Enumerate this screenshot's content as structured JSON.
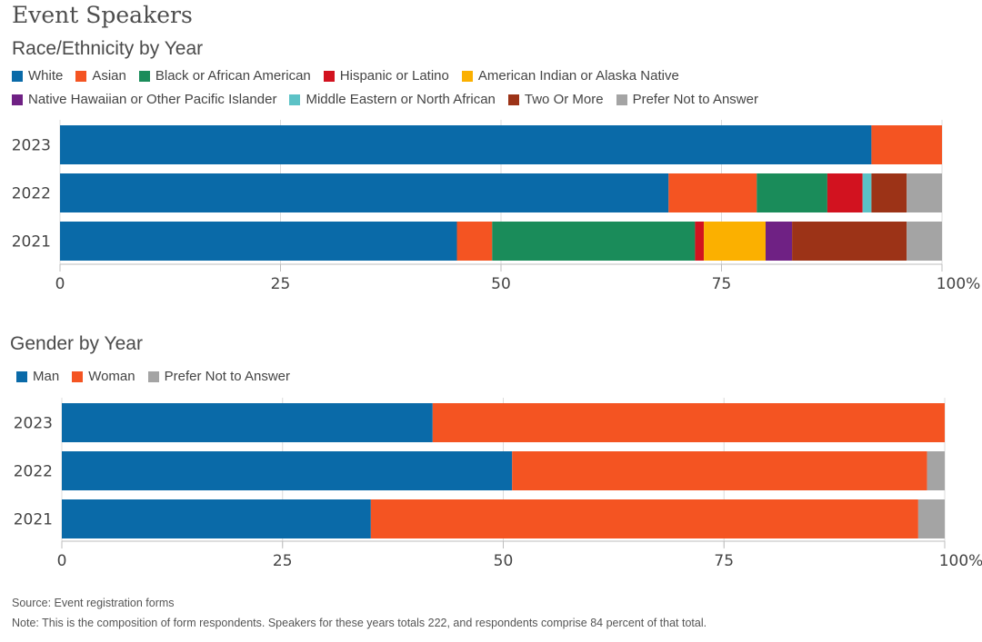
{
  "title": "Event Speakers",
  "colors": {
    "White": "#0a6aa8",
    "Asian": "#f45422",
    "Black or African American": "#1a8c5a",
    "Hispanic or Latino": "#d2121f",
    "American Indian or Alaska Native": "#fbb000",
    "Native Hawaiian or Other Pacific Islander": "#6f2184",
    "Middle Eastern or North African": "#5cc2c6",
    "Two Or More": "#9c3317",
    "Prefer Not to Answer": "#a4a4a4",
    "Man": "#0a6aa8",
    "Woman": "#f45422"
  },
  "chart_data": [
    {
      "type": "bar",
      "orientation": "horizontal",
      "stacked": true,
      "title": "Race/Ethnicity by Year",
      "legend_position": "top",
      "categories": [
        "2023",
        "2022",
        "2021"
      ],
      "series": [
        {
          "name": "White",
          "values": [
            92,
            69,
            45
          ]
        },
        {
          "name": "Asian",
          "values": [
            8,
            10,
            4
          ]
        },
        {
          "name": "Black or African American",
          "values": [
            0,
            8,
            23
          ]
        },
        {
          "name": "Hispanic or Latino",
          "values": [
            0,
            4,
            1
          ]
        },
        {
          "name": "American Indian or Alaska Native",
          "values": [
            0,
            0,
            7
          ]
        },
        {
          "name": "Native Hawaiian or Other Pacific Islander",
          "values": [
            0,
            0,
            3
          ]
        },
        {
          "name": "Middle Eastern or North African",
          "values": [
            0,
            1,
            0
          ]
        },
        {
          "name": "Two Or More",
          "values": [
            0,
            4,
            13
          ]
        },
        {
          "name": "Prefer Not to Answer",
          "values": [
            0,
            4,
            4
          ]
        }
      ],
      "xlim": [
        0,
        100
      ],
      "x_ticks": [
        "0",
        "25",
        "50",
        "75",
        "100%"
      ],
      "grid": true
    },
    {
      "type": "bar",
      "orientation": "horizontal",
      "stacked": true,
      "title": "Gender by Year",
      "legend_position": "top",
      "categories": [
        "2023",
        "2022",
        "2021"
      ],
      "series": [
        {
          "name": "Man",
          "values": [
            42,
            51,
            35
          ]
        },
        {
          "name": "Woman",
          "values": [
            58,
            47,
            62
          ]
        },
        {
          "name": "Prefer Not to Answer",
          "values": [
            0,
            2,
            3
          ]
        }
      ],
      "xlim": [
        0,
        100
      ],
      "x_ticks": [
        "0",
        "25",
        "50",
        "75",
        "100%"
      ],
      "grid": true
    }
  ],
  "footnotes": {
    "source": "Source: Event registration forms",
    "note": "Note: This is the composition of form respondents. Speakers for these years totals 222, and respondents comprise 84 percent of that total."
  }
}
